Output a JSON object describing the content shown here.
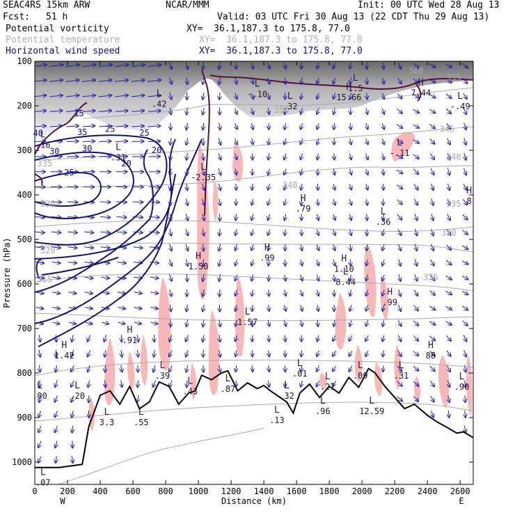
{
  "header": {
    "model": "SEAC4RS 15km ARW",
    "org": "NCAR/MMM",
    "init": "Init: 00 UTC Wed 28 Aug 13",
    "fcst_label": "Fcst:",
    "fcst_value": "51 h",
    "valid": "Valid: 03 UTC Fri 30 Aug 13 (22 CDT Thu 29 Aug 13)",
    "fields": [
      {
        "name": "Potential vorticity",
        "xy": "XY=  36.1,187.3 to 175.8, 77.0",
        "color": "#000000"
      },
      {
        "name": "Potential temperature",
        "xy": "XY=  36.1,187.3 to 175.8, 77.0",
        "color": "#b0b0b0"
      },
      {
        "name": "Horizontal wind speed",
        "xy": "XY=  36.1,187.3 to 175.8, 77.0",
        "color": "#101070"
      }
    ]
  },
  "chart_data": {
    "type": "cross-section",
    "xlabel": "Distance (km)",
    "ylabel": "Pressure (hPa)",
    "x_ticks": [
      0,
      200,
      400,
      600,
      800,
      1000,
      1200,
      1400,
      1600,
      1800,
      2000,
      2200,
      2400,
      2600
    ],
    "y_ticks": [
      100,
      200,
      300,
      400,
      500,
      600,
      700,
      800,
      900,
      1000
    ],
    "xlim": [
      0,
      2680
    ],
    "ylim": [
      1050,
      100
    ],
    "x_end_labels": {
      "left": "W",
      "right": "E"
    },
    "colors": {
      "terrain": "#000000",
      "pv_shading": "#f7b8b8",
      "theta": "#a8a8a8",
      "wind_contour": "#10107a",
      "wind_vector": "#1a1ab0",
      "pv_tropopause": "#5a1030"
    },
    "theta_contours": [
      {
        "label": "315",
        "p": 590,
        "x": 60
      },
      {
        "label": "320",
        "p": 525,
        "x": 80
      },
      {
        "label": "325",
        "p": 585,
        "x": 2420
      },
      {
        "label": "330",
        "p": 420,
        "x": 80
      },
      {
        "label": "330",
        "p": 485,
        "x": 2530
      },
      {
        "label": "335",
        "p": 420,
        "x": 2560
      },
      {
        "label": "335",
        "p": 330,
        "x": 60
      },
      {
        "label": "340",
        "p": 378,
        "x": 1560
      },
      {
        "label": "340",
        "p": 315,
        "x": 2560
      },
      {
        "label": "345",
        "p": 252,
        "x": 2520
      },
      {
        "label": "350",
        "p": 209,
        "x": 1510
      },
      {
        "label": "355",
        "p": 137,
        "x": 2560
      },
      {
        "label": "360",
        "p": 122,
        "x": 2330
      }
    ],
    "wind_speed_contours": [
      {
        "label": "40",
        "p": 262,
        "x": 20
      },
      {
        "label": "35",
        "p": 259,
        "x": 290
      },
      {
        "label": "30",
        "p": 302,
        "x": 120
      },
      {
        "label": "30",
        "p": 296,
        "x": 320
      },
      {
        "label": "25",
        "p": 350,
        "x": 210
      },
      {
        "label": "25",
        "p": 252,
        "x": 460
      },
      {
        "label": "25",
        "p": 261,
        "x": 670
      },
      {
        "label": "20",
        "p": 330,
        "x": 560
      },
      {
        "label": "20",
        "p": 300,
        "x": 745
      },
      {
        "label": "15",
        "p": 217,
        "x": 270
      }
    ],
    "extrema": [
      {
        "type": "L",
        "value": "-.10",
        "x": 1360,
        "p": 168
      },
      {
        "type": "L",
        "value": ".32",
        "x": 1560,
        "p": 195
      },
      {
        "type": "H",
        "value": "15.66",
        "x": 1920,
        "p": 175
      },
      {
        "type": "L",
        "value": "1.5",
        "x": 1960,
        "p": 155
      },
      {
        "type": "H",
        "value": "7.44",
        "x": 2360,
        "p": 165
      },
      {
        "type": "L",
        "value": "-.49",
        "x": 2600,
        "p": 195
      },
      {
        "type": "L",
        "value": "-.11",
        "x": 2230,
        "p": 300
      },
      {
        "type": "L",
        "value": "-2.35",
        "x": 1030,
        "p": 355
      },
      {
        "type": "H",
        "value": ".79",
        "x": 1640,
        "p": 425
      },
      {
        "type": "L",
        "value": ".36",
        "x": 2130,
        "p": 455
      },
      {
        "type": "H",
        "value": "8",
        "x": 2655,
        "p": 408
      },
      {
        "type": "H",
        "value": ".99",
        "x": 1420,
        "p": 535
      },
      {
        "type": "H",
        "value": "1.50",
        "x": 1000,
        "p": 555
      },
      {
        "type": "H",
        "value": "1.10",
        "x": 1890,
        "p": 560
      },
      {
        "type": "L",
        "value": "8.44",
        "x": 1900,
        "p": 590
      },
      {
        "type": "H",
        "value": ".99",
        "x": 2170,
        "p": 635
      },
      {
        "type": "L",
        "value": "1.57",
        "x": 1300,
        "p": 680
      },
      {
        "type": "H",
        "value": ".91",
        "x": 580,
        "p": 720
      },
      {
        "type": "H",
        "value": "1.42",
        "x": 180,
        "p": 755
      },
      {
        "type": "H",
        "value": "88",
        "x": 2420,
        "p": 755
      },
      {
        "type": "L",
        "value": ".39",
        "x": 780,
        "p": 800
      },
      {
        "type": "L",
        "value": ".43",
        "x": 950,
        "p": 835
      },
      {
        "type": "L",
        "value": ".87",
        "x": 1180,
        "p": 830
      },
      {
        "type": "L",
        "value": ".20",
        "x": 260,
        "p": 845
      },
      {
        "type": "L",
        "value": ".01",
        "x": 1620,
        "p": 795
      },
      {
        "type": "L",
        "value": ".27",
        "x": 1790,
        "p": 825
      },
      {
        "type": "L",
        "value": ".09",
        "x": 1990,
        "p": 800
      },
      {
        "type": "L",
        "value": ".31",
        "x": 2240,
        "p": 800
      },
      {
        "type": "L",
        "value": ".90",
        "x": 2610,
        "p": 825
      },
      {
        "type": "L",
        "value": ".00",
        "x": 30,
        "p": 845
      },
      {
        "type": "L",
        "value": ".32",
        "x": 1540,
        "p": 845
      },
      {
        "type": "L",
        "value": "3.3",
        "x": 440,
        "p": 905
      },
      {
        "type": "L",
        "value": ".55",
        "x": 650,
        "p": 905
      },
      {
        "type": "L",
        "value": ".13",
        "x": 1480,
        "p": 900
      },
      {
        "type": "L",
        "value": ".96",
        "x": 1760,
        "p": 880
      },
      {
        "type": "L",
        "value": "12.59",
        "x": 2060,
        "p": 880
      },
      {
        "type": "L",
        "value": ".07",
        "x": 50,
        "p": 1040
      },
      {
        "type": "L",
        "value": ".42",
        "x": 760,
        "p": 190
      },
      {
        "type": "L",
        "value": ".16",
        "x": 50,
        "p": 282
      },
      {
        "type": "L",
        "value": ".31",
        "x": 510,
        "p": 310
      }
    ],
    "terrain_profile": {
      "x": [
        0,
        150,
        290,
        330,
        400,
        460,
        520,
        580,
        640,
        700,
        760,
        820,
        880,
        940,
        980,
        1020,
        1080,
        1140,
        1180,
        1240,
        1300,
        1360,
        1400,
        1440,
        1480,
        1540,
        1580,
        1620,
        1680,
        1740,
        1800,
        1860,
        1920,
        1980,
        2040,
        2080,
        2140,
        2200,
        2260,
        2320,
        2400,
        2460,
        2520,
        2580,
        2620,
        2680
      ],
      "p": [
        1012,
        1012,
        1005,
        920,
        850,
        840,
        870,
        830,
        880,
        865,
        820,
        830,
        870,
        845,
        840,
        805,
        815,
        800,
        795,
        840,
        822,
        835,
        828,
        840,
        850,
        865,
        890,
        845,
        825,
        855,
        830,
        845,
        810,
        832,
        790,
        800,
        830,
        855,
        880,
        870,
        895,
        910,
        922,
        935,
        932,
        945
      ]
    }
  }
}
